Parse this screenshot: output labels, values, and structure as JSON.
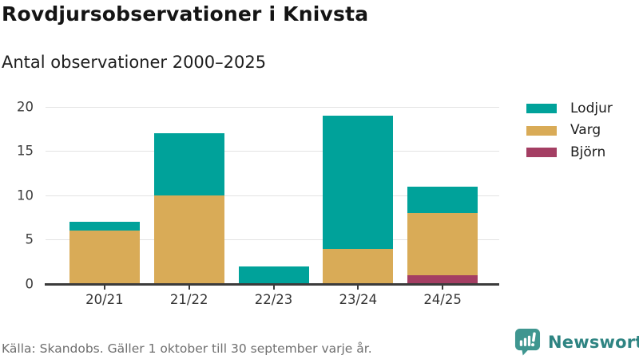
{
  "header": {
    "title": "Rovdjursobservationer i Knivsta",
    "subtitle": "Antal observationer 2000–2025"
  },
  "chart_data": {
    "type": "bar",
    "stacked": true,
    "title": "Rovdjursobservationer i Knivsta",
    "subtitle": "Antal observationer 2000–2025",
    "categories": [
      "20/21",
      "21/22",
      "22/23",
      "23/24",
      "24/25"
    ],
    "series": [
      {
        "name": "Lodjur",
        "color": "#00a29a",
        "values": [
          1,
          7,
          2,
          15,
          3
        ]
      },
      {
        "name": "Varg",
        "color": "#d9ab57",
        "values": [
          6,
          10,
          0,
          4,
          7
        ]
      },
      {
        "name": "Björn",
        "color": "#a43e63",
        "values": [
          0,
          0,
          0,
          0,
          1
        ]
      }
    ],
    "totals": [
      7,
      17,
      2,
      19,
      11
    ],
    "ylim": [
      0,
      20
    ],
    "yticks": [
      0,
      5,
      10,
      15,
      20
    ],
    "grid": true,
    "legend_position": "right"
  },
  "footer": {
    "source": "Källa: Skandobs. Gäller 1 oktober till 30 september varje år.",
    "brand": "Newsworthy"
  },
  "icons": {
    "brand_icon": "bar-chart-speech-bubble"
  },
  "colors": {
    "accent_teal": "#00a29a",
    "accent_gold": "#d9ab57",
    "accent_maroon": "#a43e63",
    "axis": "#3b3b3b",
    "grid": "#e3e3e3",
    "brand_teal": "#2e8482",
    "brand_icon_fill": "#3f9690",
    "muted_text": "#6f6f6f"
  }
}
